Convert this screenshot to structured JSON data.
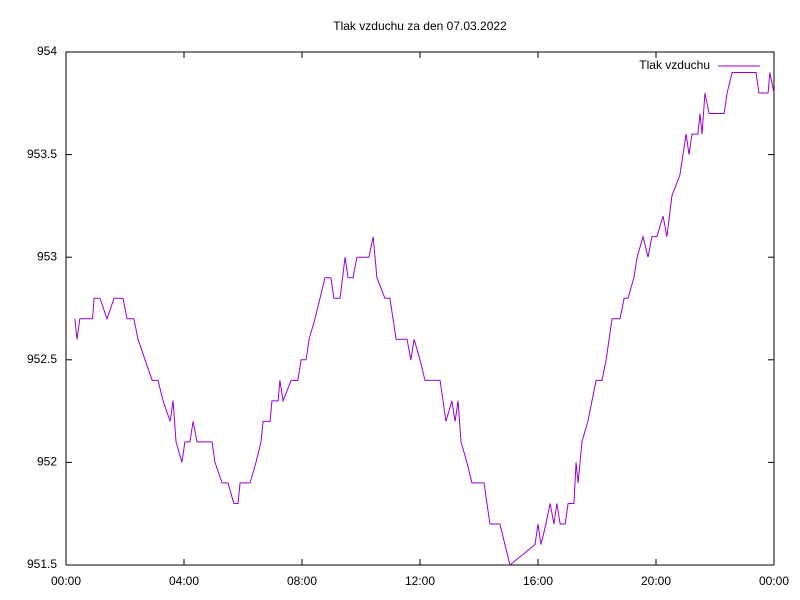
{
  "chart_data": {
    "type": "line",
    "title": "Tlak vzduchu za den 07.03.2022",
    "x": [
      0.3,
      0.37,
      0.47,
      0.9,
      0.95,
      1.15,
      1.39,
      1.63,
      1.93,
      2.07,
      2.3,
      2.44,
      2.68,
      2.92,
      3.12,
      3.29,
      3.53,
      3.63,
      3.73,
      3.93,
      4.03,
      4.2,
      4.31,
      4.44,
      4.95,
      5.05,
      5.29,
      5.49,
      5.69,
      5.83,
      5.9,
      6.24,
      6.44,
      6.61,
      6.68,
      6.92,
      6.98,
      7.19,
      7.25,
      7.36,
      7.63,
      7.86,
      7.97,
      8.14,
      8.24,
      8.44,
      8.61,
      8.78,
      8.98,
      9.08,
      9.29,
      9.46,
      9.56,
      9.73,
      9.86,
      10.27,
      10.41,
      10.54,
      10.81,
      10.98,
      11.19,
      11.56,
      11.69,
      11.8,
      12.0,
      12.17,
      12.68,
      12.88,
      13.08,
      13.19,
      13.29,
      13.39,
      13.59,
      13.76,
      14.17,
      14.37,
      14.71,
      14.88,
      15.05,
      15.9,
      16.0,
      16.1,
      16.27,
      16.41,
      16.54,
      16.64,
      16.75,
      16.92,
      17.02,
      17.22,
      17.29,
      17.36,
      17.49,
      17.69,
      17.83,
      17.97,
      18.17,
      18.31,
      18.51,
      18.78,
      18.92,
      19.05,
      19.25,
      19.36,
      19.56,
      19.73,
      19.86,
      20.03,
      20.24,
      20.37,
      20.54,
      20.81,
      21.02,
      21.12,
      21.22,
      21.42,
      21.49,
      21.56,
      21.66,
      21.8,
      22.31,
      22.41,
      22.58,
      23.39,
      23.49,
      23.8,
      23.86,
      24.0
    ],
    "series": [
      {
        "name": "Tlak vzduchu",
        "color": "#9400d3",
        "values": [
          952.7,
          952.6,
          952.7,
          952.7,
          952.8,
          952.8,
          952.7,
          952.8,
          952.8,
          952.7,
          952.7,
          952.6,
          952.5,
          952.4,
          952.4,
          952.3,
          952.2,
          952.3,
          952.1,
          952.0,
          952.1,
          952.1,
          952.2,
          952.1,
          952.1,
          952.0,
          951.9,
          951.9,
          951.8,
          951.8,
          951.9,
          951.9,
          952.0,
          952.1,
          952.2,
          952.2,
          952.3,
          952.3,
          952.4,
          952.3,
          952.4,
          952.4,
          952.5,
          952.5,
          952.6,
          952.7,
          952.8,
          952.9,
          952.9,
          952.8,
          952.8,
          953.0,
          952.9,
          952.9,
          953.0,
          953.0,
          953.1,
          952.9,
          952.8,
          952.8,
          952.6,
          952.6,
          952.5,
          952.6,
          952.5,
          952.4,
          952.4,
          952.2,
          952.3,
          952.2,
          952.3,
          952.1,
          952.0,
          951.9,
          951.9,
          951.7,
          951.7,
          951.6,
          951.5,
          951.6,
          951.7,
          951.6,
          951.7,
          951.8,
          951.7,
          951.8,
          951.7,
          951.7,
          951.8,
          951.8,
          952.0,
          951.9,
          952.1,
          952.2,
          952.3,
          952.4,
          952.4,
          952.5,
          952.7,
          952.7,
          952.8,
          952.8,
          952.9,
          953.0,
          953.1,
          953.0,
          953.1,
          953.1,
          953.2,
          953.1,
          953.3,
          953.4,
          953.6,
          953.5,
          953.6,
          953.6,
          953.7,
          953.6,
          953.8,
          953.7,
          953.7,
          953.8,
          953.9,
          953.9,
          953.8,
          953.8,
          953.9,
          953.8
        ]
      }
    ],
    "xlim": [
      0,
      24
    ],
    "xticks": [
      {
        "value": 0,
        "label": "00:00"
      },
      {
        "value": 4,
        "label": "04:00"
      },
      {
        "value": 8,
        "label": "08:00"
      },
      {
        "value": 12,
        "label": "12:00"
      },
      {
        "value": 16,
        "label": "16:00"
      },
      {
        "value": 20,
        "label": "20:00"
      },
      {
        "value": 24,
        "label": "00:00"
      }
    ],
    "ylim": [
      951.5,
      954
    ],
    "yticks": [
      951.5,
      952,
      952.5,
      953,
      953.5,
      954
    ],
    "legend": "top-right"
  }
}
